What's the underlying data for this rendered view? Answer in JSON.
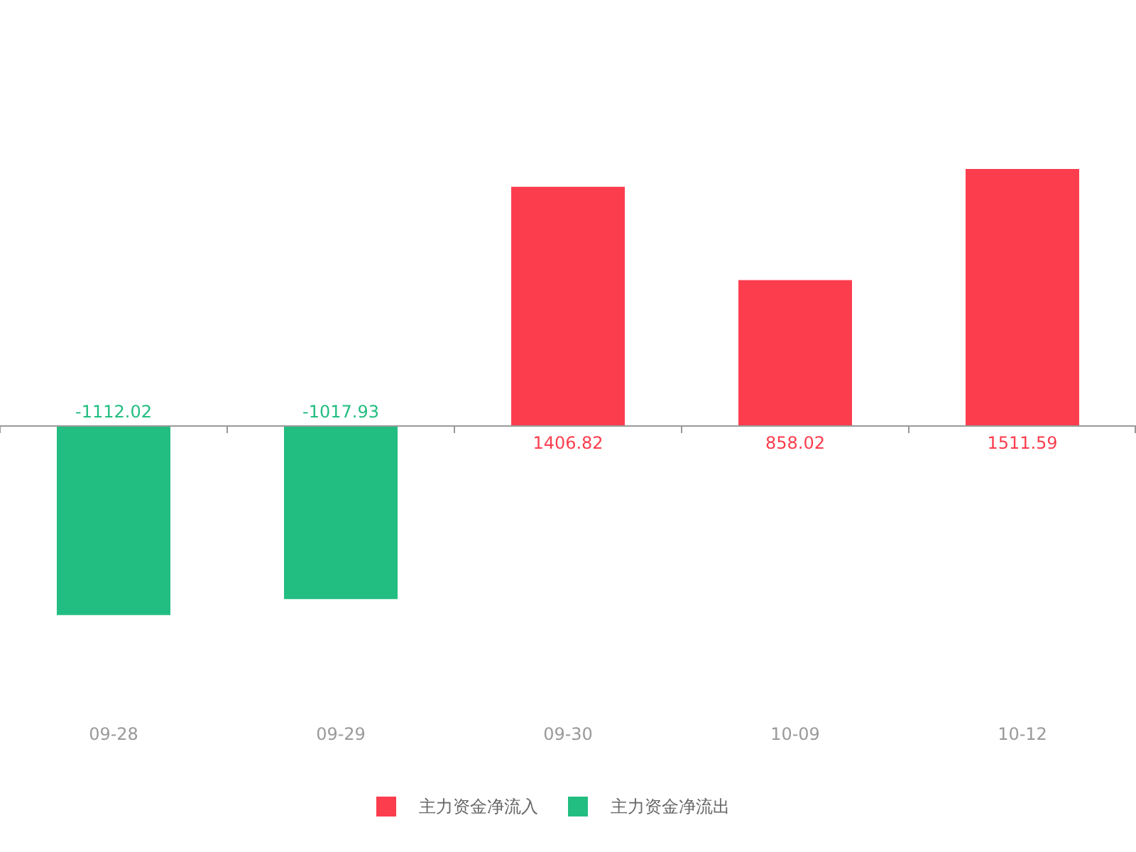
{
  "chart_data": {
    "type": "bar",
    "stacked": true,
    "data_labels": true,
    "legend": "bottom",
    "categories": [
      "09-28",
      "09-29",
      "09-30",
      "10-09",
      "10-12"
    ],
    "series": [
      {
        "name": "主力资金净流入",
        "color": "#fc3d4d",
        "values": [
          null,
          null,
          1406.82,
          858.02,
          1511.59
        ]
      },
      {
        "name": "主力资金净流出",
        "color": "#22bd80",
        "values": [
          -1112.02,
          -1017.93,
          null,
          null,
          null
        ]
      }
    ]
  }
}
